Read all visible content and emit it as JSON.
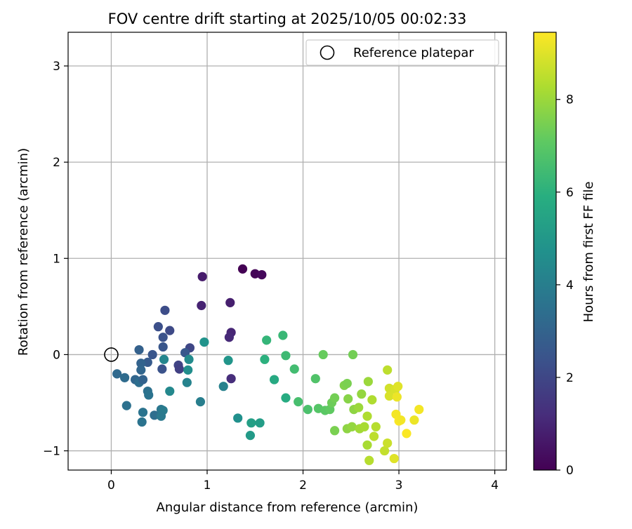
{
  "chart_data": {
    "type": "scatter",
    "title": "FOV centre drift starting at 2025/10/05 00:02:33",
    "xlabel": "Angular distance from reference (arcmin)",
    "ylabel": "Rotation from reference (arcmin)",
    "xlim": [
      -0.45,
      4.12
    ],
    "ylim": [
      -1.2,
      3.35
    ],
    "xticks": [
      0,
      1,
      2,
      3,
      4
    ],
    "yticks": [
      -1,
      0,
      1,
      2,
      3
    ],
    "grid": true,
    "legend": {
      "position": "top-right",
      "entries": [
        "Reference platepar"
      ]
    },
    "reference_point": {
      "x": 0,
      "y": 0
    },
    "colorbar": {
      "label": "Hours from first FF file",
      "range": [
        0,
        9.45
      ],
      "ticks": [
        0,
        2,
        4,
        6,
        8
      ],
      "colormap": "viridis"
    },
    "points": [
      {
        "x": 1.37,
        "y": 0.89,
        "h": 0.0
      },
      {
        "x": 1.5,
        "y": 0.84,
        "h": 0.1
      },
      {
        "x": 1.57,
        "y": 0.83,
        "h": 0.2
      },
      {
        "x": 0.95,
        "y": 0.81,
        "h": 0.7
      },
      {
        "x": 1.24,
        "y": 0.54,
        "h": 0.8
      },
      {
        "x": 0.94,
        "y": 0.51,
        "h": 0.9
      },
      {
        "x": 1.25,
        "y": 0.23,
        "h": 1.0
      },
      {
        "x": 1.23,
        "y": 0.18,
        "h": 1.1
      },
      {
        "x": 1.25,
        "y": -0.25,
        "h": 1.2
      },
      {
        "x": 0.56,
        "y": 0.46,
        "h": 2.2
      },
      {
        "x": 0.49,
        "y": 0.29,
        "h": 2.3
      },
      {
        "x": 0.61,
        "y": 0.25,
        "h": 2.1
      },
      {
        "x": 0.54,
        "y": 0.18,
        "h": 2.4
      },
      {
        "x": 0.54,
        "y": 0.08,
        "h": 2.5
      },
      {
        "x": 0.82,
        "y": 0.07,
        "h": 2.0
      },
      {
        "x": 0.77,
        "y": 0.02,
        "h": 2.6
      },
      {
        "x": 0.43,
        "y": 0.0,
        "h": 2.5
      },
      {
        "x": 0.29,
        "y": 0.05,
        "h": 2.9
      },
      {
        "x": 0.7,
        "y": -0.11,
        "h": 1.9
      },
      {
        "x": 0.71,
        "y": -0.15,
        "h": 1.8
      },
      {
        "x": 0.38,
        "y": -0.08,
        "h": 2.7
      },
      {
        "x": 0.53,
        "y": -0.15,
        "h": 2.4
      },
      {
        "x": 0.31,
        "y": -0.09,
        "h": 3.0
      },
      {
        "x": 0.31,
        "y": -0.16,
        "h": 3.1
      },
      {
        "x": 0.06,
        "y": -0.2,
        "h": 3.2
      },
      {
        "x": 0.14,
        "y": -0.24,
        "h": 3.3
      },
      {
        "x": 0.25,
        "y": -0.26,
        "h": 3.1
      },
      {
        "x": 0.29,
        "y": -0.29,
        "h": 3.4
      },
      {
        "x": 0.33,
        "y": -0.26,
        "h": 3.0
      },
      {
        "x": 0.38,
        "y": -0.38,
        "h": 3.5
      },
      {
        "x": 0.39,
        "y": -0.42,
        "h": 3.6
      },
      {
        "x": 0.16,
        "y": -0.53,
        "h": 3.5
      },
      {
        "x": 0.33,
        "y": -0.6,
        "h": 3.6
      },
      {
        "x": 0.45,
        "y": -0.63,
        "h": 3.4
      },
      {
        "x": 0.52,
        "y": -0.57,
        "h": 3.7
      },
      {
        "x": 0.54,
        "y": -0.58,
        "h": 3.9
      },
      {
        "x": 0.52,
        "y": -0.64,
        "h": 3.8
      },
      {
        "x": 0.32,
        "y": -0.7,
        "h": 3.6
      },
      {
        "x": 0.55,
        "y": -0.05,
        "h": 4.3
      },
      {
        "x": 0.81,
        "y": -0.05,
        "h": 4.5
      },
      {
        "x": 0.8,
        "y": -0.16,
        "h": 4.6
      },
      {
        "x": 0.79,
        "y": -0.29,
        "h": 4.2
      },
      {
        "x": 0.61,
        "y": -0.38,
        "h": 4.4
      },
      {
        "x": 0.93,
        "y": -0.49,
        "h": 4.0
      },
      {
        "x": 0.97,
        "y": 0.13,
        "h": 4.8
      },
      {
        "x": 1.22,
        "y": -0.06,
        "h": 4.9
      },
      {
        "x": 1.17,
        "y": -0.33,
        "h": 4.1
      },
      {
        "x": 1.32,
        "y": -0.66,
        "h": 4.7
      },
      {
        "x": 1.45,
        "y": -0.84,
        "h": 5.1
      },
      {
        "x": 1.46,
        "y": -0.71,
        "h": 5.3
      },
      {
        "x": 1.55,
        "y": -0.71,
        "h": 5.2
      },
      {
        "x": 1.79,
        "y": 0.2,
        "h": 6.3
      },
      {
        "x": 1.62,
        "y": 0.15,
        "h": 6.2
      },
      {
        "x": 1.6,
        "y": -0.05,
        "h": 6.0
      },
      {
        "x": 1.7,
        "y": -0.26,
        "h": 5.7
      },
      {
        "x": 1.82,
        "y": -0.01,
        "h": 6.4
      },
      {
        "x": 1.91,
        "y": -0.15,
        "h": 6.5
      },
      {
        "x": 1.82,
        "y": -0.45,
        "h": 5.8
      },
      {
        "x": 1.95,
        "y": -0.49,
        "h": 6.6
      },
      {
        "x": 2.05,
        "y": -0.57,
        "h": 6.7
      },
      {
        "x": 2.13,
        "y": -0.25,
        "h": 6.8
      },
      {
        "x": 2.16,
        "y": -0.56,
        "h": 6.9
      },
      {
        "x": 2.21,
        "y": 0.0,
        "h": 7.2
      },
      {
        "x": 2.23,
        "y": -0.58,
        "h": 7.0
      },
      {
        "x": 2.28,
        "y": -0.57,
        "h": 7.1
      },
      {
        "x": 2.3,
        "y": -0.5,
        "h": 7.3
      },
      {
        "x": 2.33,
        "y": -0.45,
        "h": 7.4
      },
      {
        "x": 2.33,
        "y": -0.79,
        "h": 7.5
      },
      {
        "x": 2.43,
        "y": -0.32,
        "h": 7.6
      },
      {
        "x": 2.46,
        "y": -0.3,
        "h": 7.5
      },
      {
        "x": 2.47,
        "y": -0.46,
        "h": 7.7
      },
      {
        "x": 2.46,
        "y": -0.77,
        "h": 7.8
      },
      {
        "x": 2.51,
        "y": -0.75,
        "h": 7.9
      },
      {
        "x": 2.52,
        "y": 0.0,
        "h": 7.4
      },
      {
        "x": 2.53,
        "y": -0.57,
        "h": 7.8
      },
      {
        "x": 2.58,
        "y": -0.55,
        "h": 8.0
      },
      {
        "x": 2.59,
        "y": -0.77,
        "h": 8.1
      },
      {
        "x": 2.61,
        "y": -0.41,
        "h": 7.9
      },
      {
        "x": 2.64,
        "y": -0.75,
        "h": 8.2
      },
      {
        "x": 2.67,
        "y": -0.64,
        "h": 8.3
      },
      {
        "x": 2.67,
        "y": -0.94,
        "h": 8.2
      },
      {
        "x": 2.68,
        "y": -0.28,
        "h": 8.0
      },
      {
        "x": 2.69,
        "y": -1.1,
        "h": 8.4
      },
      {
        "x": 2.72,
        "y": -0.47,
        "h": 8.3
      },
      {
        "x": 2.74,
        "y": -0.85,
        "h": 8.5
      },
      {
        "x": 2.76,
        "y": -0.75,
        "h": 8.4
      },
      {
        "x": 2.85,
        "y": -1.0,
        "h": 8.6
      },
      {
        "x": 2.88,
        "y": -0.92,
        "h": 8.7
      },
      {
        "x": 2.88,
        "y": -0.16,
        "h": 8.5
      },
      {
        "x": 2.9,
        "y": -0.35,
        "h": 8.8
      },
      {
        "x": 2.9,
        "y": -0.43,
        "h": 8.9
      },
      {
        "x": 2.95,
        "y": -1.08,
        "h": 9.0
      },
      {
        "x": 2.96,
        "y": -0.36,
        "h": 8.9
      },
      {
        "x": 2.97,
        "y": -0.62,
        "h": 9.3
      },
      {
        "x": 2.98,
        "y": -0.44,
        "h": 9.2
      },
      {
        "x": 2.99,
        "y": -0.33,
        "h": 9.0
      },
      {
        "x": 3.0,
        "y": -0.69,
        "h": 9.4
      },
      {
        "x": 3.02,
        "y": -0.68,
        "h": 9.3
      },
      {
        "x": 3.08,
        "y": -0.82,
        "h": 9.4
      },
      {
        "x": 3.16,
        "y": -0.68,
        "h": 9.2
      },
      {
        "x": 3.21,
        "y": -0.57,
        "h": 9.3
      }
    ]
  }
}
